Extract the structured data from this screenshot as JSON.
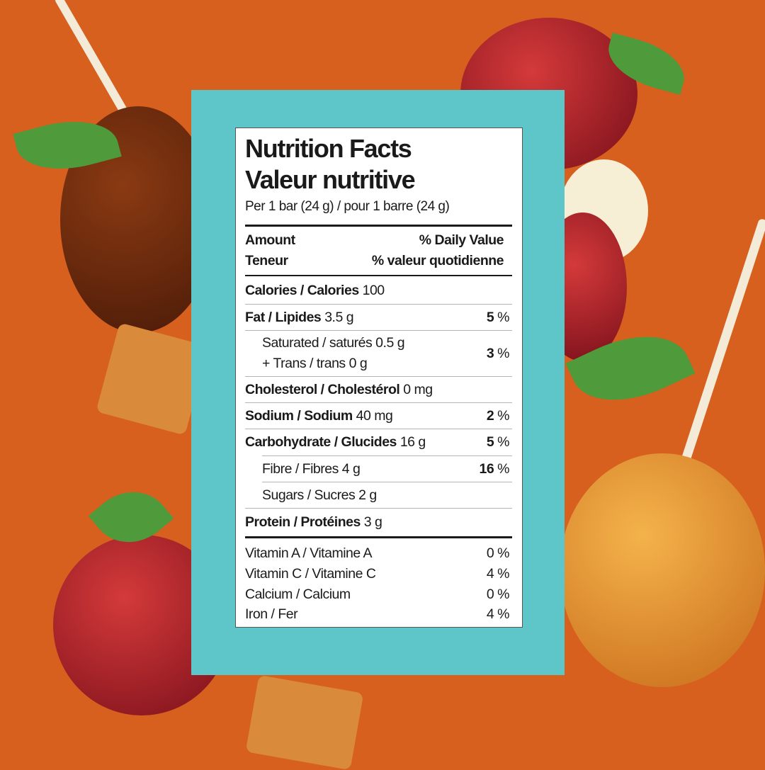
{
  "colors": {
    "background": "#d7601f",
    "panel": "#5ec6c8",
    "label": "#ffffff"
  },
  "label": {
    "title_en": "Nutrition Facts",
    "title_fr": "Valeur nutritive",
    "serving": "Per 1 bar (24 g) / pour 1 barre (24 g)",
    "header": {
      "amount_en": "Amount",
      "amount_fr": "Teneur",
      "dv_en": "% Daily Value",
      "dv_fr": "% valeur quotidienne"
    },
    "calories": {
      "name": "Calories / Calories",
      "value": "100"
    },
    "fat": {
      "name": "Fat / Lipides",
      "value": "3.5 g",
      "dv_num": "5",
      "dv_unit": " %"
    },
    "saturated": {
      "name": "Saturated / saturés 0.5 g",
      "trans": "+ Trans / trans 0 g",
      "dv_num": "3",
      "dv_unit": " %"
    },
    "cholesterol": {
      "name": "Cholesterol / Cholestérol",
      "value": "0 mg"
    },
    "sodium": {
      "name": "Sodium / Sodium",
      "value": "40 mg",
      "dv_num": "2",
      "dv_unit": " %"
    },
    "carbohydrate": {
      "name": "Carbohydrate / Glucides",
      "value": "16 g",
      "dv_num": "5",
      "dv_unit": " %"
    },
    "fibre": {
      "name": "Fibre / Fibres 4 g",
      "dv_num": "16",
      "dv_unit": " %"
    },
    "sugars": {
      "name": "Sugars / Sucres 2 g"
    },
    "protein": {
      "name": "Protein / Protéines",
      "value": "3 g"
    },
    "vitamins": [
      {
        "name": "Vitamin A / Vitamine A",
        "dv": "0 %"
      },
      {
        "name": "Vitamin C / Vitamine C",
        "dv": "4 %"
      },
      {
        "name": "Calcium / Calcium",
        "dv": "0 %"
      },
      {
        "name": "Iron / Fer",
        "dv": "4 %"
      }
    ]
  }
}
